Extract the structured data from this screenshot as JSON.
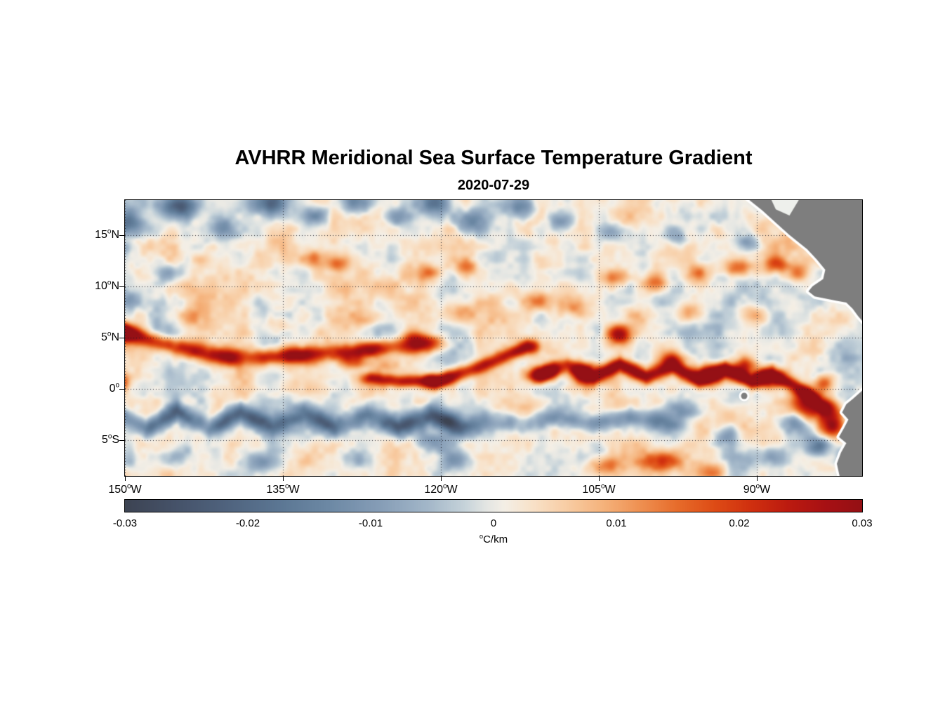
{
  "title": "AVHRR Meridional Sea Surface Temperature Gradient",
  "subtitle": "2020-07-29",
  "chart_data": {
    "type": "heatmap",
    "title": "AVHRR Meridional Sea Surface Temperature Gradient",
    "date": "2020-07-29",
    "units": "°C/km",
    "grid": "dotted",
    "lon_range": [
      -150,
      -80
    ],
    "lat_range": [
      -8.5,
      18.4
    ],
    "value_range": [
      -0.03,
      0.03
    ],
    "axes": {
      "xticks": [
        {
          "value": -150,
          "v": "150",
          "d": "o",
          "s": "W",
          "label": "150°W"
        },
        {
          "value": -135,
          "v": "135",
          "d": "o",
          "s": "W",
          "label": "135°W"
        },
        {
          "value": -120,
          "v": "120",
          "d": "o",
          "s": "W",
          "label": "120°W"
        },
        {
          "value": -105,
          "v": "105",
          "d": "o",
          "s": "W",
          "label": "105°W"
        },
        {
          "value": -90,
          "v": "90",
          "d": "o",
          "s": "W",
          "label": "90°W"
        }
      ],
      "yticks": [
        {
          "value": 15,
          "v": "15",
          "d": "o",
          "s": "N",
          "label": "15°N"
        },
        {
          "value": 10,
          "v": "10",
          "d": "o",
          "s": "N",
          "label": "10°N"
        },
        {
          "value": 5,
          "v": "5",
          "d": "o",
          "s": "N",
          "label": "5°N"
        },
        {
          "value": 0,
          "v": "0",
          "d": "o",
          "s": "",
          "label": "0°"
        },
        {
          "value": -5,
          "v": "5",
          "d": "o",
          "s": "S",
          "label": "5°S"
        }
      ]
    },
    "colorbar": {
      "min": -0.03,
      "max": 0.03,
      "tick_values": [
        -0.03,
        -0.02,
        -0.01,
        0,
        0.01,
        0.02,
        0.03
      ],
      "labels": [
        "-0.03",
        "-0.02",
        "-0.01",
        "0",
        "0.01",
        "0.02",
        "0.03"
      ],
      "unit_sup": "o",
      "unit_text": "C/km",
      "stops": [
        {
          "t": 0.0,
          "c": "#3d4453"
        },
        {
          "t": 0.07,
          "c": "#46536a"
        },
        {
          "t": 0.14,
          "c": "#50647f"
        },
        {
          "t": 0.21,
          "c": "#5c7794"
        },
        {
          "t": 0.28,
          "c": "#6e8aa6"
        },
        {
          "t": 0.35,
          "c": "#889fb8"
        },
        {
          "t": 0.41,
          "c": "#a3b7c9"
        },
        {
          "t": 0.46,
          "c": "#c6d3da"
        },
        {
          "t": 0.49,
          "c": "#e4e6e3"
        },
        {
          "t": 0.515,
          "c": "#f4efe6"
        },
        {
          "t": 0.55,
          "c": "#f8e3cb"
        },
        {
          "t": 0.6,
          "c": "#f8cda4"
        },
        {
          "t": 0.65,
          "c": "#f5b27b"
        },
        {
          "t": 0.7,
          "c": "#ef9051"
        },
        {
          "t": 0.75,
          "c": "#e76c2b"
        },
        {
          "t": 0.8,
          "c": "#de4c16"
        },
        {
          "t": 0.85,
          "c": "#d0300f"
        },
        {
          "t": 0.9,
          "c": "#bc1b10"
        },
        {
          "t": 0.95,
          "c": "#a81114"
        },
        {
          "t": 1.0,
          "c": "#951015"
        }
      ]
    },
    "field": {
      "bias": 0.0008,
      "noise": {
        "seed": 11,
        "octaves": [
          {
            "scale": 3.4,
            "amp": 0.005
          },
          {
            "scale": 1.4,
            "amp": 0.0032
          },
          {
            "scale": 0.6,
            "amp": 0.0016
          }
        ]
      },
      "bands": [
        {
          "amp": 0.027,
          "width": 0.8,
          "taper": 1.8,
          "patch": 0.4,
          "pts": [
            [
              -151,
              5.8
            ],
            [
              -148,
              4.9
            ],
            [
              -145,
              4.0
            ],
            [
              -142,
              3.3
            ],
            [
              -139,
              3.0
            ],
            [
              -136,
              3.1
            ],
            [
              -133,
              3.3
            ],
            [
              -130,
              3.5
            ],
            [
              -127,
              3.8
            ],
            [
              -124,
              4.1
            ],
            [
              -121.5,
              4.4
            ]
          ]
        },
        {
          "amp": 0.022,
          "width": 0.6,
          "taper": 1.2,
          "patch": 0.3,
          "pts": [
            [
              -126.5,
              1.0
            ],
            [
              -124,
              0.7
            ],
            [
              -121,
              0.8
            ]
          ]
        },
        {
          "amp": 0.028,
          "width": 0.7,
          "taper": 1.2,
          "patch": 0.25,
          "pts": [
            [
              -120.5,
              0.6
            ],
            [
              -117.5,
              1.7
            ],
            [
              -114.5,
              2.9
            ],
            [
              -111.8,
              4.1
            ]
          ]
        },
        {
          "amp": 0.026,
          "width": 0.75,
          "taper": 1.4,
          "patch": 0.45,
          "pts": [
            [
              -110.5,
              1.3
            ],
            [
              -108,
              2.3
            ],
            [
              -105.5,
              1.1
            ],
            [
              -103,
              2.4
            ],
            [
              -100.5,
              1.2
            ],
            [
              -98,
              2.1
            ],
            [
              -95.5,
              0.9
            ],
            [
              -93,
              1.9
            ],
            [
              -90.5,
              0.7
            ],
            [
              -88.5,
              1.5
            ],
            [
              -86.5,
              0.3
            ],
            [
              -85,
              -0.6
            ],
            [
              -83.8,
              -1.8
            ]
          ]
        },
        {
          "amp": -0.021,
          "width": 0.95,
          "taper": 2.0,
          "patch": 0.45,
          "pts": [
            [
              -151,
              -2.3
            ],
            [
              -148,
              -3.9
            ],
            [
              -145,
              -2.2
            ],
            [
              -142,
              -3.9
            ],
            [
              -139,
              -2.3
            ],
            [
              -136,
              -3.9
            ],
            [
              -133,
              -2.4
            ],
            [
              -130,
              -3.8
            ],
            [
              -127,
              -2.5
            ],
            [
              -124,
              -3.8
            ],
            [
              -121,
              -2.6
            ],
            [
              -118,
              -3.7
            ]
          ]
        },
        {
          "amp": -0.013,
          "width": 0.9,
          "taper": 2.0,
          "patch": 0.55,
          "pts": [
            [
              -116,
              -2.8
            ],
            [
              -112.5,
              -3.6
            ],
            [
              -109,
              -2.7
            ],
            [
              -105.5,
              -3.5
            ],
            [
              -102,
              -2.8
            ],
            [
              -99,
              -3.3
            ]
          ]
        }
      ],
      "blobs": [
        [
          -149.8,
          16.3,
          -0.02,
          1.5,
          1.3
        ],
        [
          -149.9,
          13.8,
          -0.012,
          0.9,
          0.8
        ],
        [
          -144.8,
          17.7,
          -0.022,
          1.9,
          1.2
        ],
        [
          -141.0,
          15.6,
          -0.015,
          1.3,
          1.0
        ],
        [
          -136.2,
          18.0,
          -0.02,
          1.9,
          1.2
        ],
        [
          -131.8,
          16.9,
          -0.013,
          1.3,
          1.0
        ],
        [
          -127.8,
          18.2,
          -0.019,
          1.7,
          1.1
        ],
        [
          -124.2,
          16.8,
          -0.012,
          1.2,
          0.9
        ],
        [
          -120.5,
          18.1,
          -0.018,
          1.7,
          1.1
        ],
        [
          -117.3,
          16.4,
          -0.014,
          1.5,
          1.0
        ],
        [
          -112.6,
          17.7,
          -0.015,
          1.6,
          1.0
        ],
        [
          -108.6,
          16.3,
          -0.011,
          1.2,
          0.9
        ],
        [
          -103.8,
          15.3,
          -0.011,
          1.2,
          0.9
        ],
        [
          -97.6,
          14.7,
          -0.01,
          1.1,
          0.8
        ],
        [
          -90.8,
          14.2,
          -0.014,
          1.1,
          0.9
        ],
        [
          -145.9,
          11.3,
          -0.011,
          1.4,
          1.0
        ],
        [
          -149.8,
          8.6,
          -0.012,
          1.1,
          1.0
        ],
        [
          -132.4,
          12.7,
          0.014,
          1.2,
          0.8
        ],
        [
          -129.8,
          12.1,
          0.011,
          1.0,
          0.7
        ],
        [
          -121.2,
          11.3,
          0.013,
          1.3,
          0.8
        ],
        [
          -117.6,
          11.9,
          0.011,
          1.2,
          0.8
        ],
        [
          -103.6,
          10.9,
          0.016,
          1.4,
          0.9
        ],
        [
          -99.6,
          10.4,
          0.015,
          1.3,
          0.9
        ],
        [
          -95.6,
          11.2,
          0.016,
          1.3,
          0.9
        ],
        [
          -91.9,
          11.9,
          0.017,
          1.4,
          0.9
        ],
        [
          -88.2,
          12.1,
          0.018,
          1.3,
          0.9
        ],
        [
          -85.9,
          11.3,
          0.015,
          0.9,
          0.8
        ],
        [
          -143.2,
          7.1,
          0.008,
          1.5,
          1.0
        ],
        [
          -135.4,
          6.5,
          0.008,
          1.5,
          1.0
        ],
        [
          -127.3,
          6.9,
          0.008,
          1.4,
          1.0
        ],
        [
          -118.2,
          7.6,
          0.009,
          1.6,
          1.0
        ],
        [
          -111.2,
          8.6,
          0.011,
          1.5,
          0.9
        ],
        [
          -107.2,
          7.9,
          0.01,
          1.5,
          1.0
        ],
        [
          -101.2,
          7.0,
          0.009,
          1.4,
          1.0
        ],
        [
          -96.2,
          7.5,
          0.01,
          1.4,
          1.0
        ],
        [
          -90.2,
          7.1,
          0.011,
          1.5,
          1.0
        ],
        [
          -122.6,
          5.1,
          0.012,
          1.0,
          0.7
        ],
        [
          -128.2,
          2.6,
          0.014,
          1.4,
          0.8
        ],
        [
          -125.2,
          2.3,
          0.012,
          1.2,
          0.7
        ],
        [
          -150.4,
          5.4,
          0.022,
          1.1,
          0.9
        ],
        [
          -150.4,
          0.6,
          0.02,
          0.9,
          0.9
        ],
        [
          -103.1,
          5.3,
          0.026,
          1.2,
          0.9
        ],
        [
          -109.8,
          1.7,
          0.018,
          1.0,
          0.8
        ],
        [
          -106.4,
          1.5,
          0.028,
          1.5,
          1.0
        ],
        [
          -98.1,
          2.7,
          0.02,
          1.1,
          0.9
        ],
        [
          -94.6,
          1.3,
          0.026,
          1.5,
          1.0
        ],
        [
          -91.1,
          2.2,
          0.02,
          1.1,
          0.9
        ],
        [
          -88.6,
          0.8,
          0.024,
          1.3,
          0.9
        ],
        [
          -85.1,
          -1.6,
          0.031,
          2.0,
          1.5
        ],
        [
          -82.9,
          -3.4,
          0.028,
          1.2,
          1.3
        ],
        [
          -83.6,
          0.6,
          0.016,
          0.9,
          0.8
        ],
        [
          -96.6,
          -2.1,
          -0.012,
          1.3,
          0.9
        ],
        [
          -93.1,
          -4.6,
          -0.011,
          1.4,
          1.0
        ],
        [
          -86.4,
          -3.1,
          -0.017,
          1.3,
          1.0
        ],
        [
          -84.1,
          -5.6,
          -0.015,
          1.3,
          1.0
        ],
        [
          -88.6,
          -6.6,
          -0.012,
          1.5,
          1.0
        ],
        [
          -81.6,
          -6.6,
          -0.014,
          1.0,
          1.2
        ],
        [
          -104.6,
          -7.5,
          0.013,
          1.7,
          0.9
        ],
        [
          -99.1,
          -7.1,
          0.014,
          1.8,
          0.9
        ],
        [
          -94.1,
          -7.9,
          0.01,
          1.4,
          0.8
        ],
        [
          -145.0,
          -6.5,
          -0.009,
          1.6,
          1.1
        ],
        [
          -137.0,
          -7.3,
          -0.008,
          1.6,
          1.0
        ],
        [
          -128.0,
          -6.8,
          -0.009,
          1.6,
          1.0
        ],
        [
          -121.0,
          -5.0,
          -0.01,
          1.5,
          1.0
        ],
        [
          -119.0,
          -7.0,
          -0.008,
          1.5,
          1.0
        ]
      ]
    },
    "land": {
      "color": "#7e7e7e",
      "coast_halo": "#ffffff",
      "polygons": {
        "central_america": [
          [
            -91.2,
            18.8
          ],
          [
            -89.5,
            17.4
          ],
          [
            -88.2,
            16.2
          ],
          [
            -86.9,
            15.0
          ],
          [
            -85.2,
            13.6
          ],
          [
            -84.3,
            12.6
          ],
          [
            -83.5,
            11.6
          ],
          [
            -83.7,
            10.7
          ],
          [
            -84.7,
            10.0
          ],
          [
            -85.1,
            9.5
          ],
          [
            -84.5,
            9.0
          ],
          [
            -83.5,
            8.8
          ],
          [
            -82.5,
            8.6
          ],
          [
            -81.5,
            8.4
          ],
          [
            -80.9,
            7.8
          ],
          [
            -80.4,
            7.1
          ],
          [
            -79.8,
            6.4
          ],
          [
            -78.8,
            6.3
          ],
          [
            -78.8,
            19.0
          ]
        ],
        "south_america": [
          [
            -79.9,
            -0.1
          ],
          [
            -80.9,
            -1.0
          ],
          [
            -81.5,
            -1.5
          ],
          [
            -81.9,
            -2.3
          ],
          [
            -81.3,
            -3.0
          ],
          [
            -81.7,
            -3.8
          ],
          [
            -82.2,
            -4.7
          ],
          [
            -81.5,
            -5.3
          ],
          [
            -82.0,
            -6.2
          ],
          [
            -82.4,
            -7.3
          ],
          [
            -82.1,
            -8.7
          ],
          [
            -78.8,
            -8.7
          ],
          [
            -78.8,
            -0.1
          ]
        ]
      },
      "caribbean_notch": {
        "fill": "#eef0ec",
        "pts": [
          [
            -88.7,
            18.6
          ],
          [
            -85.9,
            18.6
          ],
          [
            -86.9,
            16.9
          ],
          [
            -88.2,
            17.5
          ]
        ]
      },
      "galapagos": {
        "lon": -91.2,
        "lat": -0.7,
        "r": 0.3
      }
    }
  }
}
